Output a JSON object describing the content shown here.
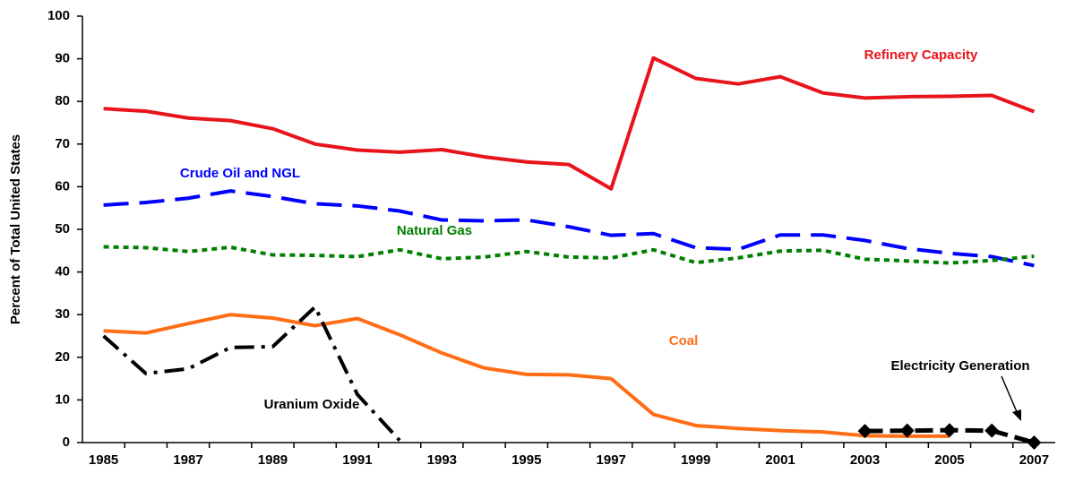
{
  "chart_data": {
    "type": "line",
    "y_label": "Percent of Total United States",
    "categories": [
      "1985",
      null,
      "1987",
      null,
      "1989",
      null,
      "1991",
      null,
      "1993",
      null,
      "1995",
      null,
      "1997",
      null,
      "1999",
      null,
      "2001",
      null,
      "2003",
      null,
      "2005",
      null,
      "2007"
    ],
    "ylim": [
      0,
      100
    ],
    "yticks": [
      0,
      10,
      20,
      30,
      40,
      50,
      60,
      70,
      80,
      90,
      100
    ],
    "series": [
      {
        "name": "Refinery Capacity",
        "color": "#e8141c",
        "values": [
          78.3,
          77.7,
          76.1,
          75.5,
          73.6,
          70,
          68.6,
          68.1,
          68.7,
          67,
          65.8,
          65.2,
          59.5,
          90.2,
          85.4,
          84.1,
          85.8,
          82,
          80.8,
          81.1,
          81.2,
          81.4,
          77.6
        ]
      },
      {
        "name": "Crude Oil and NGL",
        "color": "#0000ff",
        "values": [
          55.7,
          56.3,
          57.3,
          59,
          57.7,
          56,
          55.5,
          54.3,
          52.2,
          52,
          52.2,
          50.6,
          48.6,
          49,
          45.7,
          45.3,
          48.7,
          48.7,
          47.4,
          45.5,
          44.4,
          43.6,
          41.5
        ]
      },
      {
        "name": "Natural Gas",
        "color": "#008000",
        "values": [
          45.9,
          45.7,
          44.8,
          45.8,
          44,
          43.9,
          43.6,
          45.2,
          43.1,
          43.5,
          44.8,
          43.5,
          43.3,
          45.2,
          42.2,
          43.3,
          44.9,
          45.1,
          43,
          42.6,
          42.1,
          42.7,
          43.7
        ]
      },
      {
        "name": "Coal",
        "color": "#ff6e16",
        "values": [
          26.2,
          25.7,
          27.9,
          30,
          29.2,
          27.4,
          29.1,
          25.3,
          21,
          17.5,
          16,
          15.9,
          15,
          6.6,
          4,
          3.3,
          2.8,
          2.5,
          1.6,
          1.5,
          1.5,
          null,
          null
        ]
      },
      {
        "name": "Uranium Oxide",
        "color": "#000000",
        "values": [
          25,
          16.2,
          17.3,
          22.3,
          22.5,
          31.8,
          11.3,
          0.5,
          null,
          null,
          null,
          null,
          null,
          null,
          null,
          null,
          null,
          null,
          null,
          null,
          null,
          null,
          null
        ]
      },
      {
        "name": "Electricity Generation",
        "color": "#000000",
        "values": [
          null,
          null,
          null,
          null,
          null,
          null,
          null,
          null,
          null,
          null,
          null,
          null,
          null,
          null,
          null,
          null,
          null,
          null,
          2.7,
          2.8,
          2.9,
          2.8,
          0
        ]
      }
    ]
  }
}
